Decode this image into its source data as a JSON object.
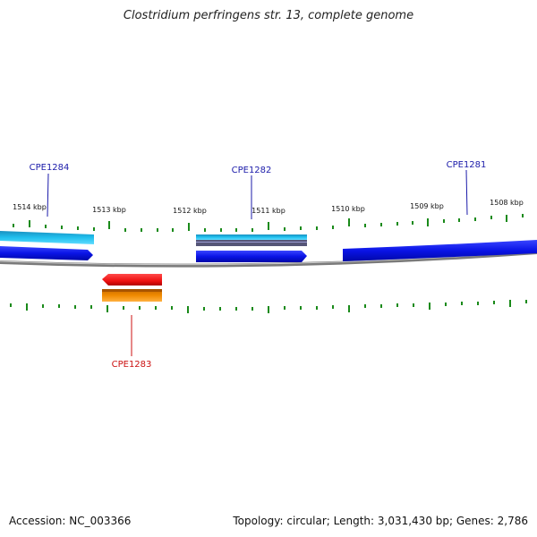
{
  "header": {
    "title": "Clostridium perfringens str. 13, complete genome"
  },
  "footer": {
    "accession": "Accession: NC_003366",
    "summary": "Topology: circular; Length: 3,031,430 bp; Genes: 2,786"
  },
  "ruler": {
    "tick_labels": [
      "1514 kbp",
      "1513 kbp",
      "1512 kbp",
      "1511 kbp",
      "1510 kbp",
      "1509 kbp",
      "1508 kbp"
    ]
  },
  "genes": [
    {
      "label": "CPE1284",
      "strand": "forward"
    },
    {
      "label": "CPE1282",
      "strand": "forward"
    },
    {
      "label": "CPE1281",
      "strand": "forward"
    },
    {
      "label": "CPE1283",
      "strand": "reverse"
    }
  ],
  "colors": {
    "forward_cds": "#0a14e6",
    "reverse_cds": "#ee1111",
    "forward_feature": "#18b8e8",
    "reverse_feature": "#f08a00",
    "tick": "#1a8a1a",
    "backbone": "#808080",
    "forward_label": "#1b1baa",
    "reverse_label": "#cc1111"
  }
}
